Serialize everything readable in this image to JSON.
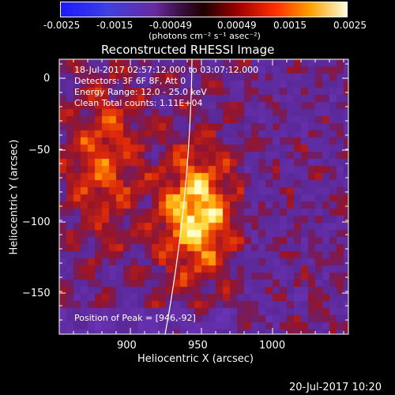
{
  "colorbar": {
    "ticks": [
      "-0.0025",
      "-0.0015",
      "-0.00049",
      "0.00049",
      "0.0015",
      "0.0025"
    ],
    "unit_label": "(photons cm⁻² s⁻¹ asec⁻²)"
  },
  "image": {
    "title": "Reconstructed RHESSI Image",
    "info_lines": [
      "18-Jul-2017 02:57:12.000 to 03:07:12.000",
      "Detectors: 3F 6F 8F, Att 0",
      "Energy Range: 12.0 - 25.0 keV",
      "Clean     Total counts: 1.11E+04"
    ],
    "peak_text": "Position of Peak = [946,-92]"
  },
  "axes": {
    "xlabel": "Heliocentric X (arcsec)",
    "ylabel": "Heliocentric Y (arcsec)",
    "x_ticks": [
      "900",
      "950",
      "1000"
    ],
    "y_ticks": [
      "0",
      "−50",
      "−100",
      "−150"
    ]
  },
  "footer": {
    "timestamp": "20-Jul-2017 10:20"
  }
}
